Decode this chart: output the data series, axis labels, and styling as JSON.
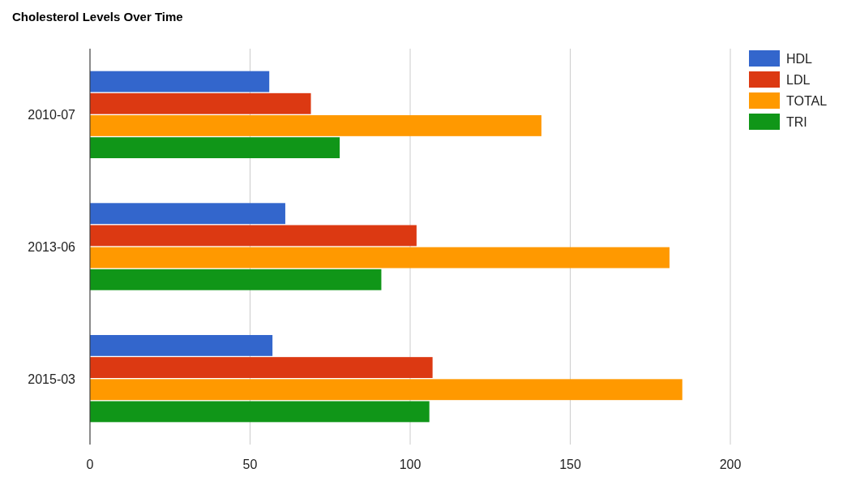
{
  "chart_data": {
    "type": "bar",
    "orientation": "horizontal",
    "title": "Cholesterol Levels Over Time",
    "categories": [
      "2010-07",
      "2013-06",
      "2015-03"
    ],
    "series": [
      {
        "name": "HDL",
        "color": "#3366cc",
        "values": [
          56,
          61,
          57
        ]
      },
      {
        "name": "LDL",
        "color": "#dc3912",
        "values": [
          69,
          102,
          107
        ]
      },
      {
        "name": "TOTAL",
        "color": "#ff9900",
        "values": [
          141,
          181,
          185
        ]
      },
      {
        "name": "TRI",
        "color": "#109618",
        "values": [
          78,
          91,
          106
        ]
      }
    ],
    "xlim": [
      0,
      200
    ],
    "xticks": [
      0,
      50,
      100,
      150,
      200
    ],
    "grid": "x",
    "legend": "top right"
  }
}
